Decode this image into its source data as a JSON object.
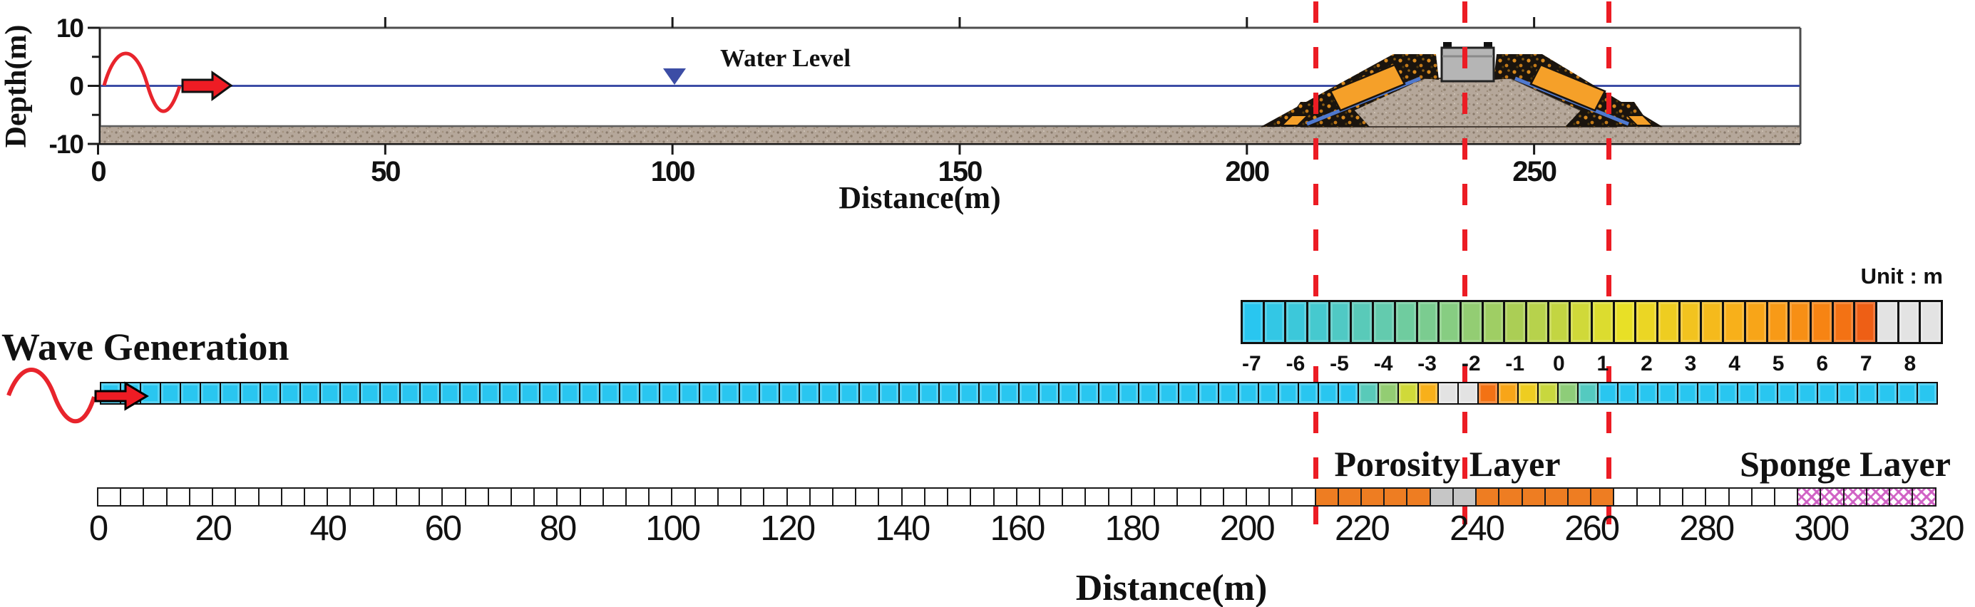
{
  "top_panel": {
    "y_axis": {
      "label": "Depth(m)",
      "tick_values": [
        10,
        0,
        -10
      ],
      "minor_ticks": [
        5,
        -5
      ],
      "range": [
        -10,
        10
      ]
    },
    "x_axis": {
      "label": "Distance(m)",
      "tick_values": [
        0,
        50,
        100,
        150,
        200,
        250
      ],
      "range": [
        0,
        296
      ]
    },
    "water_level_label": "Water Level",
    "water_level_marker_m": 100,
    "seabed_top_depth_m": -7,
    "seabed_bottom_depth_m": -10,
    "breakwater": {
      "base_from_m": 202,
      "base_to_m": 274,
      "caisson_from_m": 233.5,
      "caisson_to_m": 242.5,
      "caisson_top_depth_m": 6.6
    }
  },
  "marker_lines_m": [
    212,
    238,
    263
  ],
  "colorbar": {
    "unit_label": "Unit : m",
    "labels": [
      "-7",
      "-6",
      "-5",
      "-4",
      "-3",
      "-2",
      "-1",
      "0",
      "1",
      "2",
      "3",
      "4",
      "5",
      "6",
      "7",
      "8"
    ],
    "cell_values": [
      -7,
      -6.5,
      -6,
      -5.5,
      -5,
      -4.5,
      -4,
      -3.5,
      -3,
      -2.5,
      -2,
      -1.5,
      -1,
      -0.5,
      0,
      0.5,
      1,
      1.5,
      2,
      2.5,
      3,
      3.5,
      4,
      4.5,
      5,
      5.5,
      6,
      6.5,
      7,
      7.5,
      8,
      8.5
    ]
  },
  "color_scale": {
    "stops": [
      [
        -7,
        "#29c6f0"
      ],
      [
        -4,
        "#63cbae"
      ],
      [
        -1,
        "#abce55"
      ],
      [
        1.5,
        "#e8e026"
      ],
      [
        4,
        "#f8b01a"
      ],
      [
        6,
        "#f78413"
      ],
      [
        7,
        "#ee5f15"
      ]
    ],
    "gray_threshold": 7.5,
    "gray": "#e3e3e3"
  },
  "wave_row": {
    "title": "Wave Generation",
    "cells_total": 92,
    "default_depth": -7,
    "transition_start_index": 63,
    "transition_depths": [
      -4.5,
      -2,
      0.5,
      4,
      8,
      8,
      6.5,
      4.5,
      2.5,
      0.2,
      -2.2,
      -4.8
    ]
  },
  "bottom_axis": {
    "label": "Distance(m)",
    "tick_values": [
      0,
      20,
      40,
      60,
      80,
      100,
      120,
      140,
      160,
      180,
      200,
      220,
      240,
      260,
      280,
      300,
      320
    ]
  },
  "bottom_row": {
    "cells_total": 80,
    "cell_size_m": 4,
    "default": "water",
    "porosity_label": "Porosity Layer",
    "sponge_label": "Sponge Layer",
    "segments": [
      {
        "type": "porosity",
        "from_m": 212,
        "to_m": 232
      },
      {
        "type": "caisson",
        "from_m": 232,
        "to_m": 240
      },
      {
        "type": "porosity",
        "from_m": 240,
        "to_m": 264
      },
      {
        "type": "sponge",
        "from_m": 296,
        "to_m": 320
      }
    ]
  },
  "colors": {
    "red_accent": "#ec1c24",
    "water_blue": "#3c4da5",
    "slope_blue": "#4f79cf",
    "porosity_orange": "#ee7d22",
    "caisson_gray": "#c6c6c6",
    "sponge_pink": "#cf5fc4",
    "sand_brown": "#b5a79a",
    "armor_black": "#1a140e",
    "deep_water_cyan": "#29c6f0"
  }
}
